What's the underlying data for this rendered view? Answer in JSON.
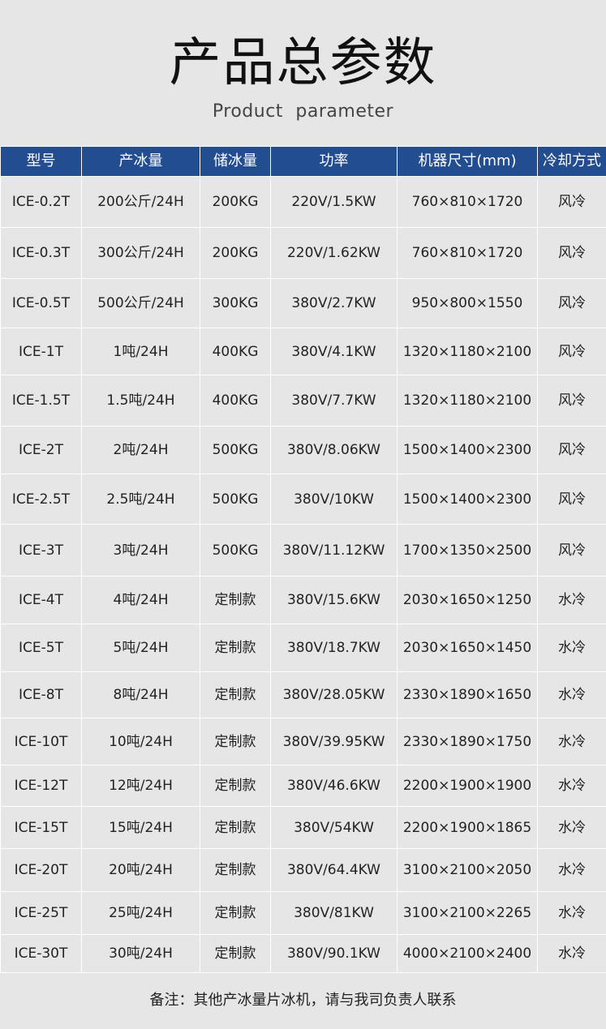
{
  "title": "产品总参数",
  "subtitle": "Product parameter",
  "colors": {
    "header_bg": "#234d91",
    "page_bg": "#e6e6e6"
  },
  "table": {
    "headers": [
      "型号",
      "产冰量",
      "储冰量",
      "功率",
      "机器尺寸(mm)",
      "冷却方式"
    ],
    "rows": [
      [
        "ICE-0.2T",
        "200公斤/24H",
        "200KG",
        "220V/1.5KW",
        "760×810×1720",
        "风冷"
      ],
      [
        "ICE-0.3T",
        "300公斤/24H",
        "200KG",
        "220V/1.62KW",
        "760×810×1720",
        "风冷"
      ],
      [
        "ICE-0.5T",
        "500公斤/24H",
        "300KG",
        "380V/2.7KW",
        "950×800×1550",
        "风冷"
      ],
      [
        "ICE-1T",
        "1吨/24H",
        "400KG",
        "380V/4.1KW",
        "1320×1180×2100",
        "风冷"
      ],
      [
        "ICE-1.5T",
        "1.5吨/24H",
        "400KG",
        "380V/7.7KW",
        "1320×1180×2100",
        "风冷"
      ],
      [
        "ICE-2T",
        "2吨/24H",
        "500KG",
        "380V/8.06KW",
        "1500×1400×2300",
        "风冷"
      ],
      [
        "ICE-2.5T",
        "2.5吨/24H",
        "500KG",
        "380V/10KW",
        "1500×1400×2300",
        "风冷"
      ],
      [
        "ICE-3T",
        "3吨/24H",
        "500KG",
        "380V/11.12KW",
        "1700×1350×2500",
        "风冷"
      ],
      [
        "ICE-4T",
        "4吨/24H",
        "定制款",
        "380V/15.6KW",
        "2030×1650×1250",
        "水冷"
      ],
      [
        "ICE-5T",
        "5吨/24H",
        "定制款",
        "380V/18.7KW",
        "2030×1650×1450",
        "水冷"
      ],
      [
        "ICE-8T",
        "8吨/24H",
        "定制款",
        "380V/28.05KW",
        "2330×1890×1650",
        "水冷"
      ],
      [
        "ICE-10T",
        "10吨/24H",
        "定制款",
        "380V/39.95KW",
        "2330×1890×1750",
        "水冷"
      ],
      [
        "ICE-12T",
        "12吨/24H",
        "定制款",
        "380V/46.6KW",
        "2200×1900×1900",
        "水冷"
      ],
      [
        "ICE-15T",
        "15吨/24H",
        "定制款",
        "380V/54KW",
        "2200×1900×1865",
        "水冷"
      ],
      [
        "ICE-20T",
        "20吨/24H",
        "定制款",
        "380V/64.4KW",
        "3100×2100×2050",
        "水冷"
      ],
      [
        "ICE-25T",
        "25吨/24H",
        "定制款",
        "380V/81KW",
        "3100×2100×2265",
        "水冷"
      ],
      [
        "ICE-30T",
        "30吨/24H",
        "定制款",
        "380V/90.1KW",
        "4000×2100×2400",
        "水冷"
      ]
    ]
  },
  "note": "备注：其他产冰量片冰机，请与我司负责人联系"
}
